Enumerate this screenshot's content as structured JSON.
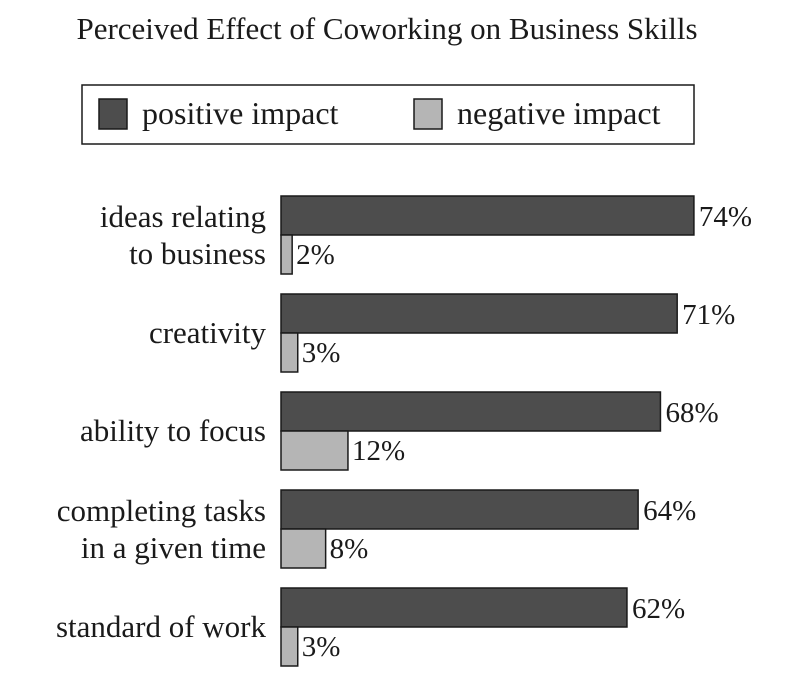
{
  "chart_data": {
    "type": "bar",
    "orientation": "horizontal",
    "title": "Perceived Effect of Coworking on Business Skills",
    "categories": [
      [
        "ideas relating",
        "to business"
      ],
      [
        "creativity"
      ],
      [
        "ability to focus"
      ],
      [
        "completing tasks",
        "in a given time"
      ],
      [
        "standard of work"
      ]
    ],
    "series": [
      {
        "name": "positive impact",
        "values": [
          74,
          71,
          68,
          64,
          62
        ],
        "labels": [
          "74%",
          "71%",
          "68%",
          "64%",
          "62%"
        ],
        "color": "#4d4d4d"
      },
      {
        "name": "negative impact",
        "values": [
          2,
          3,
          12,
          8,
          3
        ],
        "labels": [
          "2%",
          "3%",
          "12%",
          "8%",
          "3%"
        ],
        "color": "#b5b5b5"
      }
    ],
    "unit": "%",
    "legend_position": "top",
    "grid": false
  }
}
